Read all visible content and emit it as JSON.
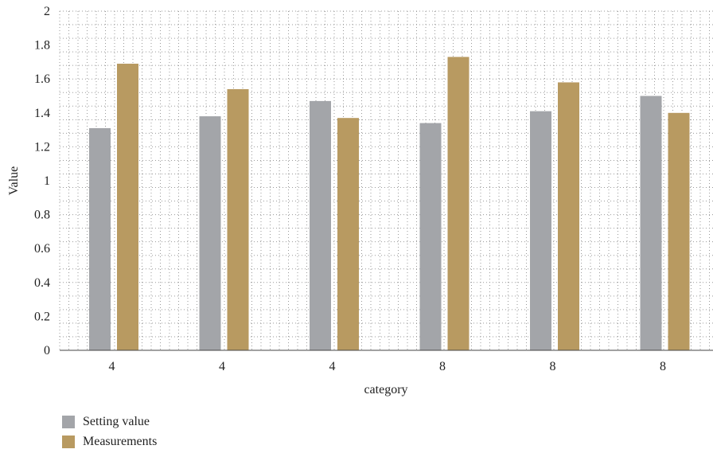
{
  "chart_data": {
    "type": "bar",
    "xlabel": "category",
    "ylabel": "Value",
    "ylim": [
      0,
      2
    ],
    "yticks": [
      "0",
      "0.2",
      "0.4",
      "0.6",
      "0.8",
      "1",
      "1.2",
      "1.4",
      "1.6",
      "1.8",
      "2"
    ],
    "categories": [
      "4",
      "4",
      "4",
      "8",
      "8",
      "8"
    ],
    "series": [
      {
        "name": "Setting value",
        "color": "#a3a5a9",
        "values": [
          1.31,
          1.38,
          1.47,
          1.34,
          1.41,
          1.5
        ]
      },
      {
        "name": "Measurements",
        "color": "#b89a61",
        "values": [
          1.69,
          1.54,
          1.37,
          1.73,
          1.58,
          1.4
        ]
      }
    ],
    "grid": "dotted",
    "legend_position": "bottom-left"
  }
}
